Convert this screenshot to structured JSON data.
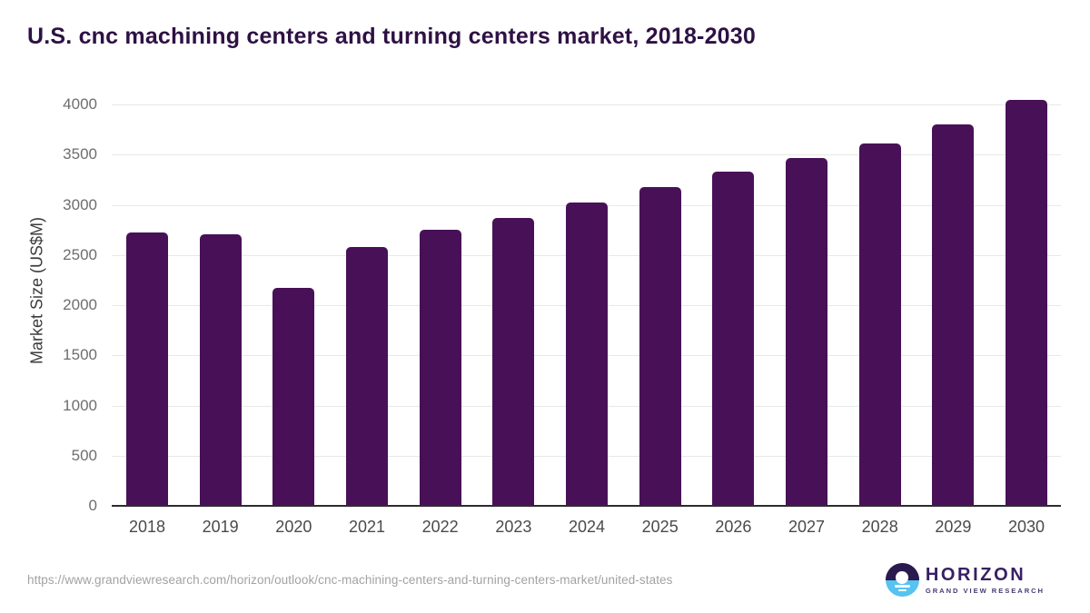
{
  "title": "U.S. cnc machining centers and turning centers market, 2018-2030",
  "chart_data": {
    "type": "bar",
    "title": "U.S. cnc machining centers and turning centers market, 2018-2030",
    "categories": [
      "2018",
      "2019",
      "2020",
      "2021",
      "2022",
      "2023",
      "2024",
      "2025",
      "2026",
      "2027",
      "2028",
      "2029",
      "2030"
    ],
    "values": [
      2725,
      2705,
      2170,
      2580,
      2750,
      2870,
      3025,
      3175,
      3330,
      3465,
      3610,
      3800,
      4045
    ],
    "xlabel": "",
    "ylabel": "Market Size (US$M)",
    "ylim": [
      0,
      4000
    ],
    "yticks": [
      0,
      500,
      1000,
      1500,
      2000,
      2500,
      3000,
      3500,
      4000
    ],
    "grid": "horizontal",
    "legend": "none",
    "bar_color": "#481157"
  },
  "footer": {
    "source_url": "https://www.grandviewresearch.com/horizon/outlook/cnc-machining-centers-and-turning-centers-market/united-states",
    "logo": {
      "name": "HORIZON",
      "subtitle": "GRAND VIEW RESEARCH"
    }
  },
  "colors": {
    "title_text": "#2e1144",
    "bar": "#481157",
    "gridline": "#e8e8e8",
    "axis_line": "#2d2d2d",
    "ytick_text": "#6e6e6e",
    "xtick_text": "#4a4a4a",
    "url_text": "#a2a2a2",
    "logo_dark": "#2a1a4e",
    "logo_blue": "#56c3f0",
    "logo_text": "#372064"
  }
}
